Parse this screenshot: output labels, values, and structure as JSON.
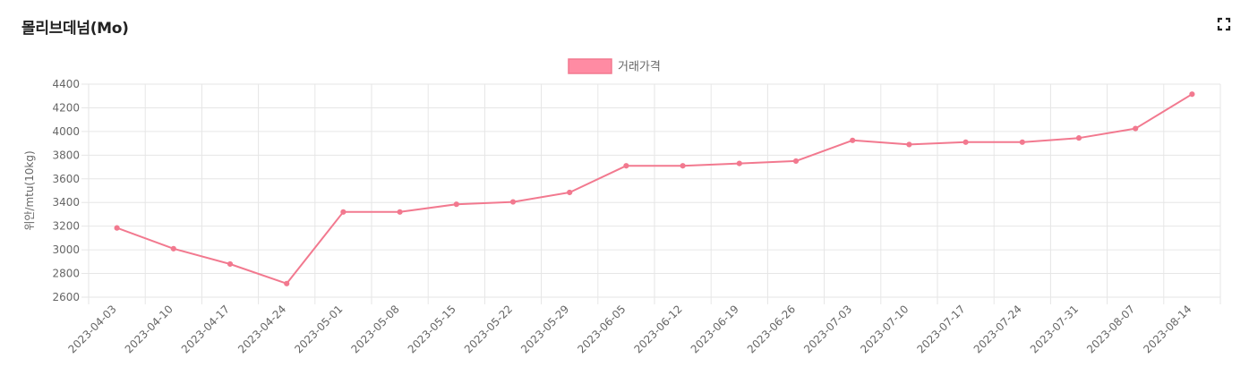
{
  "card": {
    "title": "몰리브데넘(Mo)",
    "expand_icon": "fullscreen-expand-icon"
  },
  "colors": {
    "series_line": "#f2798f",
    "series_fill": "#ff8ba3",
    "grid": "#e6e6e6",
    "tick_text": "#666666"
  },
  "chart_data": {
    "type": "line",
    "title": "",
    "ylabel": "위안/mtu(10kg)",
    "xlabel": "",
    "ylim": [
      2600,
      4400
    ],
    "yticks": [
      2600,
      2800,
      3000,
      3200,
      3400,
      3600,
      3800,
      4000,
      4200,
      4400
    ],
    "grid": true,
    "legend_position": "top-center",
    "categories": [
      "2023-04-03",
      "2023-04-10",
      "2023-04-17",
      "2023-04-24",
      "2023-05-01",
      "2023-05-08",
      "2023-05-15",
      "2023-05-22",
      "2023-05-29",
      "2023-06-05",
      "2023-06-12",
      "2023-06-19",
      "2023-06-26",
      "2023-07-03",
      "2023-07-10",
      "2023-07-17",
      "2023-07-24",
      "2023-07-31",
      "2023-08-07",
      "2023-08-14"
    ],
    "series": [
      {
        "name": "거래가격",
        "values": [
          3185,
          3010,
          2880,
          2715,
          3320,
          3320,
          3385,
          3405,
          3485,
          3710,
          3710,
          3730,
          3750,
          3925,
          3890,
          3910,
          3910,
          3945,
          4025,
          4315
        ]
      }
    ]
  }
}
